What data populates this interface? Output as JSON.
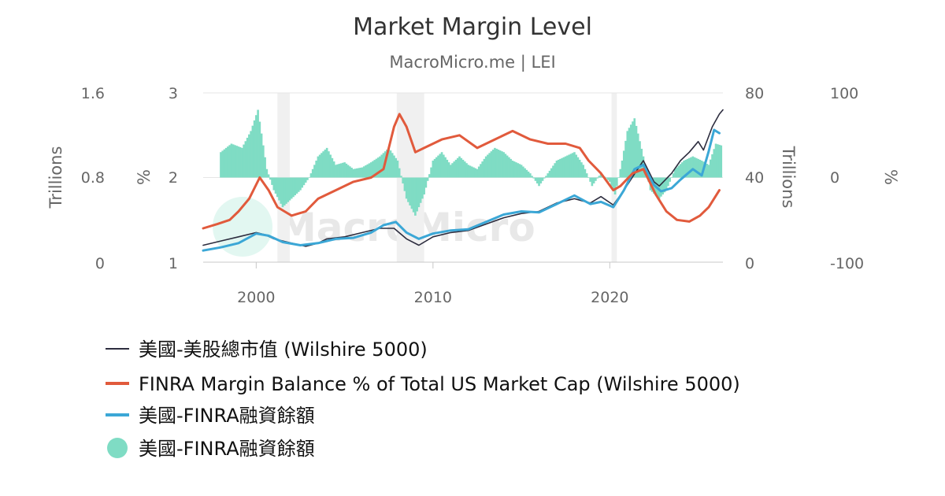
{
  "chart_data": {
    "type": "line",
    "title": "Market Margin Level",
    "subtitle": "MacroMicro.me | LEI",
    "watermark": "MacroMicro",
    "x_ticks": [
      "2000",
      "2010",
      "2020"
    ],
    "x_range": [
      1997.0,
      2026.4
    ],
    "recessions": [
      [
        2001.2,
        2001.9
      ],
      [
        2007.95,
        2009.5
      ],
      [
        2020.1,
        2020.4
      ]
    ],
    "axes": {
      "left_outer": {
        "title": "Trillions",
        "ticks": [
          "0",
          "0.8",
          "1.6"
        ],
        "range": [
          0,
          1.6
        ]
      },
      "left_inner": {
        "title": "%",
        "ticks": [
          "1",
          "2",
          "3"
        ],
        "range": [
          1,
          3
        ]
      },
      "right_inner": {
        "title": "Trillions",
        "ticks": [
          "0",
          "40",
          "80"
        ],
        "range": [
          0,
          80
        ]
      },
      "right_outer": {
        "title": "%",
        "ticks": [
          "-100",
          "0",
          "100"
        ],
        "range": [
          -100,
          100
        ]
      }
    },
    "series": [
      {
        "name": "美國-美股總市值 (Wilshire 5000)",
        "kind": "line",
        "axis": "right_inner",
        "color": "#2d2d3f",
        "legend_symbol": "line",
        "points": [
          [
            1997,
            8
          ],
          [
            1998,
            10
          ],
          [
            1999,
            12
          ],
          [
            2000,
            14
          ],
          [
            2000.5,
            13
          ],
          [
            2001,
            11
          ],
          [
            2002,
            9
          ],
          [
            2002.8,
            7.5
          ],
          [
            2003.5,
            9
          ],
          [
            2004,
            11
          ],
          [
            2005,
            12
          ],
          [
            2006,
            14
          ],
          [
            2007,
            16
          ],
          [
            2007.8,
            16
          ],
          [
            2008.5,
            11
          ],
          [
            2009.2,
            8
          ],
          [
            2010,
            12
          ],
          [
            2011,
            14
          ],
          [
            2012,
            15
          ],
          [
            2013,
            18
          ],
          [
            2014,
            21
          ],
          [
            2015,
            23
          ],
          [
            2016,
            24
          ],
          [
            2017,
            28
          ],
          [
            2018,
            30
          ],
          [
            2018.9,
            28
          ],
          [
            2019.5,
            31
          ],
          [
            2020.2,
            27
          ],
          [
            2020.8,
            34
          ],
          [
            2021.5,
            43
          ],
          [
            2021.9,
            48
          ],
          [
            2022.5,
            38
          ],
          [
            2022.8,
            36
          ],
          [
            2023.5,
            42
          ],
          [
            2024,
            48
          ],
          [
            2024.5,
            52
          ],
          [
            2025,
            57
          ],
          [
            2025.3,
            53
          ],
          [
            2025.8,
            64
          ],
          [
            2026.2,
            70
          ],
          [
            2026.4,
            72
          ]
        ]
      },
      {
        "name": "FINRA Margin Balance % of Total US Market Cap (Wilshire 5000)",
        "kind": "line",
        "axis": "left_inner",
        "color": "#e15a3c",
        "legend_symbol": "line",
        "points": [
          [
            1997,
            1.4
          ],
          [
            1997.8,
            1.45
          ],
          [
            1998.5,
            1.5
          ],
          [
            1999,
            1.6
          ],
          [
            1999.6,
            1.75
          ],
          [
            2000.2,
            2.0
          ],
          [
            2000.7,
            1.85
          ],
          [
            2001.2,
            1.65
          ],
          [
            2002,
            1.55
          ],
          [
            2002.8,
            1.6
          ],
          [
            2003.5,
            1.75
          ],
          [
            2004.5,
            1.85
          ],
          [
            2005.5,
            1.95
          ],
          [
            2006.5,
            2.0
          ],
          [
            2007.2,
            2.1
          ],
          [
            2007.8,
            2.6
          ],
          [
            2008.1,
            2.75
          ],
          [
            2008.5,
            2.6
          ],
          [
            2009,
            2.3
          ],
          [
            2009.5,
            2.35
          ],
          [
            2010.5,
            2.45
          ],
          [
            2011.5,
            2.5
          ],
          [
            2012.5,
            2.35
          ],
          [
            2013.5,
            2.45
          ],
          [
            2014.5,
            2.55
          ],
          [
            2015.5,
            2.45
          ],
          [
            2016.5,
            2.4
          ],
          [
            2017.5,
            2.4
          ],
          [
            2018.3,
            2.35
          ],
          [
            2018.8,
            2.2
          ],
          [
            2019.5,
            2.05
          ],
          [
            2020.2,
            1.85
          ],
          [
            2020.6,
            1.9
          ],
          [
            2021.3,
            2.05
          ],
          [
            2021.9,
            2.1
          ],
          [
            2022.6,
            1.8
          ],
          [
            2023.2,
            1.6
          ],
          [
            2023.8,
            1.5
          ],
          [
            2024.5,
            1.48
          ],
          [
            2025.1,
            1.55
          ],
          [
            2025.6,
            1.65
          ],
          [
            2026.2,
            1.85
          ]
        ]
      },
      {
        "name": "美國-FINRA融資餘額",
        "kind": "line",
        "axis": "left_outer",
        "color": "#3ba7d6",
        "legend_symbol": "line",
        "points": [
          [
            1997,
            0.11
          ],
          [
            1998,
            0.14
          ],
          [
            1999,
            0.18
          ],
          [
            2000,
            0.27
          ],
          [
            2000.7,
            0.25
          ],
          [
            2001.5,
            0.19
          ],
          [
            2002.5,
            0.16
          ],
          [
            2003.5,
            0.18
          ],
          [
            2004.5,
            0.22
          ],
          [
            2005.5,
            0.23
          ],
          [
            2006.5,
            0.28
          ],
          [
            2007.2,
            0.35
          ],
          [
            2007.9,
            0.38
          ],
          [
            2008.5,
            0.28
          ],
          [
            2009.2,
            0.22
          ],
          [
            2010,
            0.27
          ],
          [
            2011,
            0.3
          ],
          [
            2012,
            0.31
          ],
          [
            2013,
            0.38
          ],
          [
            2014,
            0.45
          ],
          [
            2015,
            0.48
          ],
          [
            2016,
            0.47
          ],
          [
            2017,
            0.55
          ],
          [
            2018,
            0.63
          ],
          [
            2018.9,
            0.55
          ],
          [
            2019.5,
            0.57
          ],
          [
            2020.2,
            0.52
          ],
          [
            2020.8,
            0.68
          ],
          [
            2021.4,
            0.88
          ],
          [
            2021.9,
            0.92
          ],
          [
            2022.5,
            0.73
          ],
          [
            2022.9,
            0.67
          ],
          [
            2023.5,
            0.7
          ],
          [
            2024,
            0.78
          ],
          [
            2024.7,
            0.88
          ],
          [
            2025.2,
            0.82
          ],
          [
            2025.6,
            1.05
          ],
          [
            2025.9,
            1.25
          ],
          [
            2026.2,
            1.22
          ]
        ]
      },
      {
        "name": "美國-FINRA融資餘額",
        "kind": "bar",
        "axis": "right_outer",
        "color": "#7fdcc4",
        "legend_symbol": "circle",
        "points": [
          [
            1998,
            30
          ],
          [
            1998.6,
            40
          ],
          [
            1999.2,
            35
          ],
          [
            1999.7,
            55
          ],
          [
            2000.1,
            80
          ],
          [
            2000.6,
            10
          ],
          [
            2001,
            -15
          ],
          [
            2001.5,
            -35
          ],
          [
            2002,
            -25
          ],
          [
            2002.5,
            -15
          ],
          [
            2003,
            0
          ],
          [
            2003.5,
            25
          ],
          [
            2004,
            35
          ],
          [
            2004.5,
            15
          ],
          [
            2005,
            18
          ],
          [
            2005.5,
            10
          ],
          [
            2006,
            12
          ],
          [
            2006.5,
            18
          ],
          [
            2007,
            25
          ],
          [
            2007.5,
            35
          ],
          [
            2008,
            20
          ],
          [
            2008.5,
            -25
          ],
          [
            2009,
            -45
          ],
          [
            2009.5,
            -20
          ],
          [
            2010,
            20
          ],
          [
            2010.5,
            30
          ],
          [
            2011,
            15
          ],
          [
            2011.5,
            25
          ],
          [
            2012,
            15
          ],
          [
            2012.5,
            10
          ],
          [
            2013,
            25
          ],
          [
            2013.5,
            35
          ],
          [
            2014,
            30
          ],
          [
            2014.5,
            20
          ],
          [
            2015,
            15
          ],
          [
            2015.5,
            5
          ],
          [
            2016,
            -10
          ],
          [
            2016.5,
            5
          ],
          [
            2017,
            20
          ],
          [
            2017.5,
            25
          ],
          [
            2018,
            30
          ],
          [
            2018.5,
            15
          ],
          [
            2019,
            -10
          ],
          [
            2019.5,
            5
          ],
          [
            2020,
            -5
          ],
          [
            2020.3,
            -20
          ],
          [
            2020.7,
            20
          ],
          [
            2021,
            55
          ],
          [
            2021.4,
            70
          ],
          [
            2021.9,
            25
          ],
          [
            2022.3,
            -15
          ],
          [
            2022.8,
            -25
          ],
          [
            2023.2,
            -15
          ],
          [
            2023.7,
            10
          ],
          [
            2024.2,
            20
          ],
          [
            2024.7,
            25
          ],
          [
            2025.2,
            20
          ],
          [
            2025.6,
            15
          ],
          [
            2026,
            40
          ],
          [
            2026.3,
            38
          ]
        ]
      }
    ],
    "legend": [
      {
        "label": "美國-美股總市值 (Wilshire 5000)",
        "color": "#2d2d3f",
        "symbol": "line"
      },
      {
        "label": "FINRA Margin Balance % of Total US Market Cap (Wilshire 5000)",
        "color": "#e15a3c",
        "symbol": "line"
      },
      {
        "label": "美國-FINRA融資餘額",
        "color": "#3ba7d6",
        "symbol": "line"
      },
      {
        "label": "美國-FINRA融資餘額",
        "color": "#7fdcc4",
        "symbol": "circle"
      }
    ],
    "grid": "horizontal",
    "legend_position": "bottom-left"
  }
}
